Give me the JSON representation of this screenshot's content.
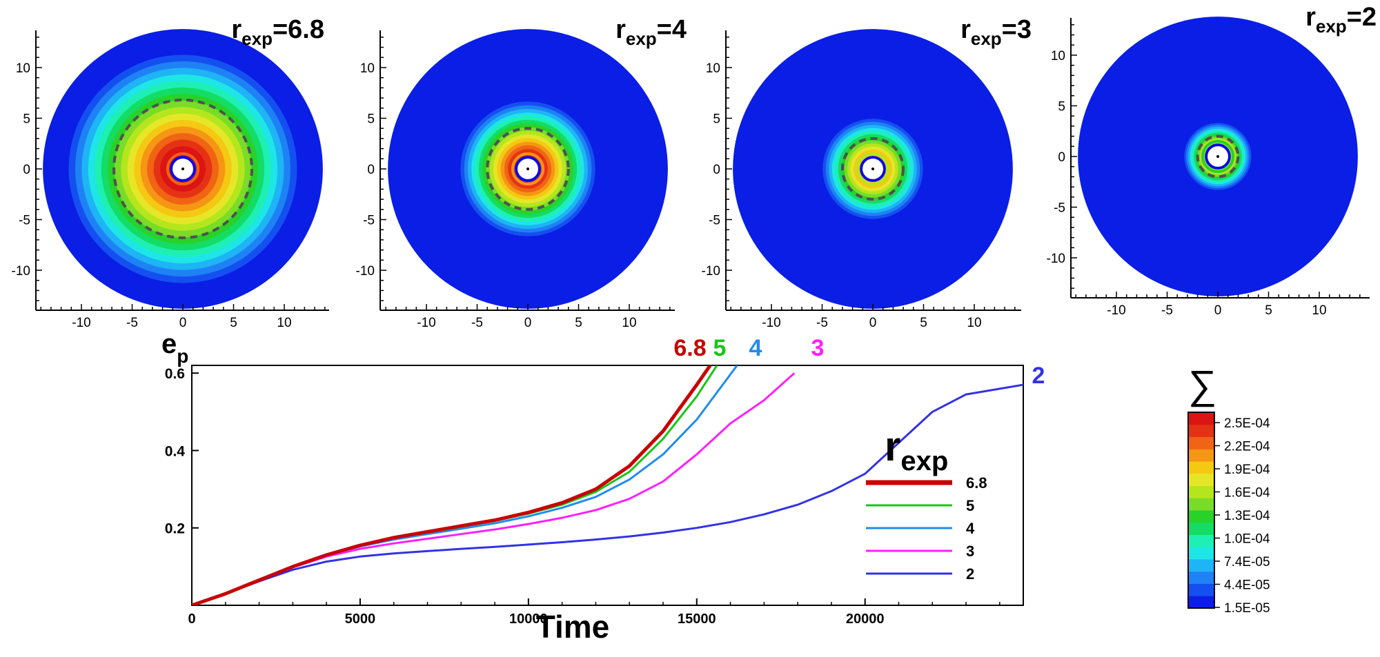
{
  "colors": {
    "contour": [
      "#0a1ee6",
      "#1450f0",
      "#1e82f5",
      "#1eb4f5",
      "#1ee6e6",
      "#1ef0b4",
      "#14dc64",
      "#28d228",
      "#78dc28",
      "#b4e61e",
      "#e6e628",
      "#f5c814",
      "#f59614",
      "#f06414",
      "#e63214",
      "#dc1414"
    ],
    "ring_inner": "#0a0ae6",
    "dash": "#505050"
  },
  "panels": [
    {
      "label_r": "r",
      "label_sub": "exp",
      "label_val": "=6.8",
      "r_exp": 6.8,
      "ticks": [
        "-10",
        "-5",
        "0",
        "5",
        "10"
      ],
      "yticks": [
        "10",
        "5",
        "0",
        "-5",
        "-10"
      ],
      "extent": 6.8,
      "peak": 1.0
    },
    {
      "label_r": "r",
      "label_sub": "exp",
      "label_val": "=4",
      "r_exp": 4,
      "ticks": [
        "-10",
        "-5",
        "0",
        "5",
        "10"
      ],
      "yticks": [
        "10",
        "5",
        "0",
        "-5",
        "-10"
      ],
      "extent": 4,
      "peak": 0.92
    },
    {
      "label_r": "r",
      "label_sub": "exp",
      "label_val": "=3",
      "r_exp": 3,
      "ticks": [
        "-10",
        "-5",
        "0",
        "5",
        "10"
      ],
      "yticks": [
        "10",
        "5",
        "0",
        "-5",
        "-10"
      ],
      "extent": 3,
      "peak": 0.72
    },
    {
      "label_r": "r",
      "label_sub": "exp",
      "label_val": "=2",
      "r_exp": 2,
      "ticks": [
        "-10",
        "-5",
        "0",
        "5",
        "10"
      ],
      "yticks": [
        "10",
        "5",
        "0",
        "-5",
        "-10"
      ],
      "extent": 2,
      "peak": 0.6
    }
  ],
  "colorbar": {
    "symbol": "∑",
    "labels": [
      "2.5E-04",
      "2.2E-04",
      "1.9E-04",
      "1.6E-04",
      "1.3E-04",
      "1.0E-04",
      "7.4E-05",
      "4.4E-05",
      "1.5E-05"
    ]
  },
  "chart_data": {
    "type": "line",
    "xlabel": "Time",
    "ylabel_main": "e",
    "ylabel_sub": "p",
    "xlim": [
      0,
      24700
    ],
    "ylim": [
      0,
      0.62
    ],
    "x_ticks": [
      "0",
      "5000",
      "10000",
      "15000",
      "20000"
    ],
    "x_tick_values": [
      0,
      5000,
      10000,
      15000,
      20000
    ],
    "y_ticks": [
      "0.2",
      "0.4",
      "0.6"
    ],
    "y_tick_values": [
      0.2,
      0.4,
      0.6
    ],
    "legend": {
      "title_main": "r",
      "title_sub": "exp",
      "position": "center-right"
    },
    "series": [
      {
        "name": "6.8",
        "end_label": "6.8",
        "color": "#c80000",
        "width": 5,
        "x": [
          0,
          1000,
          2000,
          3000,
          4000,
          5000,
          6000,
          7000,
          8000,
          9000,
          10000,
          11000,
          12000,
          13000,
          14000,
          15000,
          15400
        ],
        "y": [
          0.0,
          0.03,
          0.065,
          0.1,
          0.13,
          0.155,
          0.175,
          0.19,
          0.205,
          0.22,
          0.24,
          0.265,
          0.3,
          0.36,
          0.45,
          0.57,
          0.62
        ]
      },
      {
        "name": "5",
        "end_label": "5",
        "color": "#14c814",
        "width": 3,
        "x": [
          0,
          1000,
          2000,
          3000,
          4000,
          5000,
          6000,
          7000,
          8000,
          9000,
          10000,
          11000,
          12000,
          13000,
          14000,
          15000,
          15600
        ],
        "y": [
          0.0,
          0.03,
          0.065,
          0.1,
          0.13,
          0.154,
          0.174,
          0.188,
          0.203,
          0.218,
          0.237,
          0.26,
          0.293,
          0.345,
          0.43,
          0.54,
          0.62
        ]
      },
      {
        "name": "4",
        "end_label": "4",
        "color": "#1e8cf0",
        "width": 3,
        "x": [
          0,
          1000,
          2000,
          3000,
          4000,
          5000,
          6000,
          7000,
          8000,
          9000,
          10000,
          11000,
          12000,
          13000,
          14000,
          15000,
          16200
        ],
        "y": [
          0.0,
          0.03,
          0.065,
          0.1,
          0.13,
          0.152,
          0.17,
          0.184,
          0.198,
          0.212,
          0.23,
          0.252,
          0.28,
          0.325,
          0.39,
          0.48,
          0.62
        ]
      },
      {
        "name": "3",
        "end_label": "3",
        "color": "#ff1eff",
        "width": 3,
        "x": [
          0,
          1000,
          2000,
          3000,
          4000,
          5000,
          6000,
          7000,
          8000,
          9000,
          10000,
          11000,
          12000,
          13000,
          14000,
          15000,
          16000,
          17000,
          17900
        ],
        "y": [
          0.0,
          0.03,
          0.064,
          0.098,
          0.126,
          0.146,
          0.16,
          0.172,
          0.184,
          0.196,
          0.21,
          0.226,
          0.246,
          0.275,
          0.32,
          0.39,
          0.47,
          0.53,
          0.6
        ]
      },
      {
        "name": "2",
        "end_label": "2",
        "color": "#3232e6",
        "width": 3,
        "x": [
          0,
          1000,
          2000,
          3000,
          4000,
          5000,
          6000,
          7000,
          8000,
          9000,
          10000,
          11000,
          12000,
          13000,
          14000,
          15000,
          16000,
          17000,
          18000,
          19000,
          20000,
          21000,
          22000,
          23000,
          24700
        ],
        "y": [
          0.0,
          0.03,
          0.062,
          0.092,
          0.113,
          0.126,
          0.134,
          0.14,
          0.146,
          0.151,
          0.157,
          0.163,
          0.17,
          0.178,
          0.188,
          0.2,
          0.215,
          0.235,
          0.26,
          0.295,
          0.34,
          0.42,
          0.5,
          0.545,
          0.57
        ]
      }
    ]
  }
}
